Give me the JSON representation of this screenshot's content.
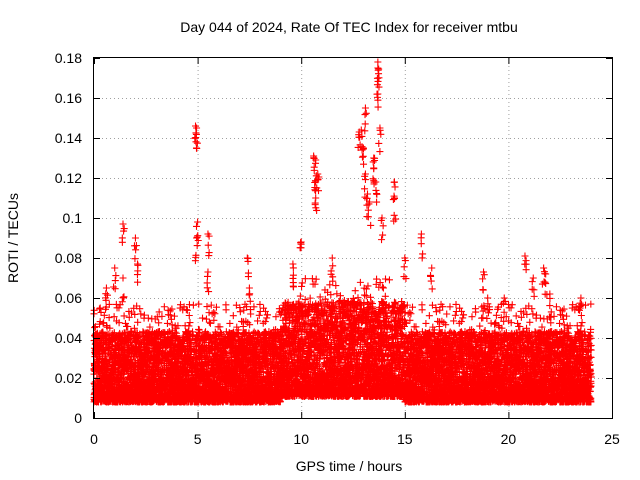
{
  "chart_data": {
    "type": "scatter",
    "title": "Day 044 of 2024, Rate Of TEC Index for receiver mtbu",
    "xlabel": "GPS time / hours",
    "ylabel": "ROTI / TECUs",
    "xlim": [
      0,
      25
    ],
    "ylim": [
      0,
      0.18
    ],
    "xticks": [
      0,
      5,
      10,
      15,
      20,
      25
    ],
    "xtick_labels": [
      "0",
      "5",
      "10",
      "15",
      "20",
      "25"
    ],
    "yticks": [
      0,
      0.02,
      0.04,
      0.06,
      0.08,
      0.1,
      0.12,
      0.14,
      0.16,
      0.18
    ],
    "ytick_labels": [
      "0",
      "0.02",
      "0.04",
      "0.06",
      "0.08",
      "0.1",
      "0.12",
      "0.14",
      "0.16",
      "0.18"
    ],
    "grid": true,
    "marker": "+",
    "color": "#ff0000",
    "series": [
      {
        "name": "ROTI",
        "x_range": [
          0,
          24
        ],
        "sample_interval_hours": 0.0083,
        "baseline_band": [
          0.008,
          0.04
        ],
        "typical_value": 0.022,
        "notable_points": [
          {
            "x": 0.3,
            "y": 0.055
          },
          {
            "x": 0.6,
            "y": 0.065
          },
          {
            "x": 1.0,
            "y": 0.075
          },
          {
            "x": 1.4,
            "y": 0.07
          },
          {
            "x": 1.4,
            "y": 0.097
          },
          {
            "x": 2.0,
            "y": 0.09
          },
          {
            "x": 2.1,
            "y": 0.077
          },
          {
            "x": 4.9,
            "y": 0.146
          },
          {
            "x": 4.95,
            "y": 0.145
          },
          {
            "x": 5.0,
            "y": 0.098
          },
          {
            "x": 4.95,
            "y": 0.09
          },
          {
            "x": 5.5,
            "y": 0.092
          },
          {
            "x": 5.5,
            "y": 0.073
          },
          {
            "x": 7.4,
            "y": 0.08
          },
          {
            "x": 7.5,
            "y": 0.065
          },
          {
            "x": 9.6,
            "y": 0.077
          },
          {
            "x": 10.0,
            "y": 0.088
          },
          {
            "x": 10.6,
            "y": 0.131
          },
          {
            "x": 10.7,
            "y": 0.129
          },
          {
            "x": 10.8,
            "y": 0.122
          },
          {
            "x": 10.7,
            "y": 0.118
          },
          {
            "x": 10.7,
            "y": 0.11
          },
          {
            "x": 11.5,
            "y": 0.08
          },
          {
            "x": 12.8,
            "y": 0.143
          },
          {
            "x": 12.9,
            "y": 0.144
          },
          {
            "x": 13.0,
            "y": 0.135
          },
          {
            "x": 13.1,
            "y": 0.155
          },
          {
            "x": 13.1,
            "y": 0.122
          },
          {
            "x": 13.2,
            "y": 0.112
          },
          {
            "x": 13.3,
            "y": 0.108
          },
          {
            "x": 13.5,
            "y": 0.13
          },
          {
            "x": 13.5,
            "y": 0.125
          },
          {
            "x": 13.6,
            "y": 0.118
          },
          {
            "x": 13.7,
            "y": 0.178
          },
          {
            "x": 13.7,
            "y": 0.175
          },
          {
            "x": 13.7,
            "y": 0.162
          },
          {
            "x": 13.8,
            "y": 0.145
          },
          {
            "x": 13.9,
            "y": 0.1
          },
          {
            "x": 14.5,
            "y": 0.118
          },
          {
            "x": 14.5,
            "y": 0.11
          },
          {
            "x": 15.0,
            "y": 0.08
          },
          {
            "x": 15.8,
            "y": 0.092
          },
          {
            "x": 16.3,
            "y": 0.075
          },
          {
            "x": 18.8,
            "y": 0.073
          },
          {
            "x": 19.0,
            "y": 0.06
          },
          {
            "x": 19.8,
            "y": 0.06
          },
          {
            "x": 20.8,
            "y": 0.081
          },
          {
            "x": 21.2,
            "y": 0.07
          },
          {
            "x": 21.7,
            "y": 0.075
          },
          {
            "x": 21.8,
            "y": 0.072
          },
          {
            "x": 22.0,
            "y": 0.062
          },
          {
            "x": 23.5,
            "y": 0.06
          }
        ]
      }
    ]
  }
}
